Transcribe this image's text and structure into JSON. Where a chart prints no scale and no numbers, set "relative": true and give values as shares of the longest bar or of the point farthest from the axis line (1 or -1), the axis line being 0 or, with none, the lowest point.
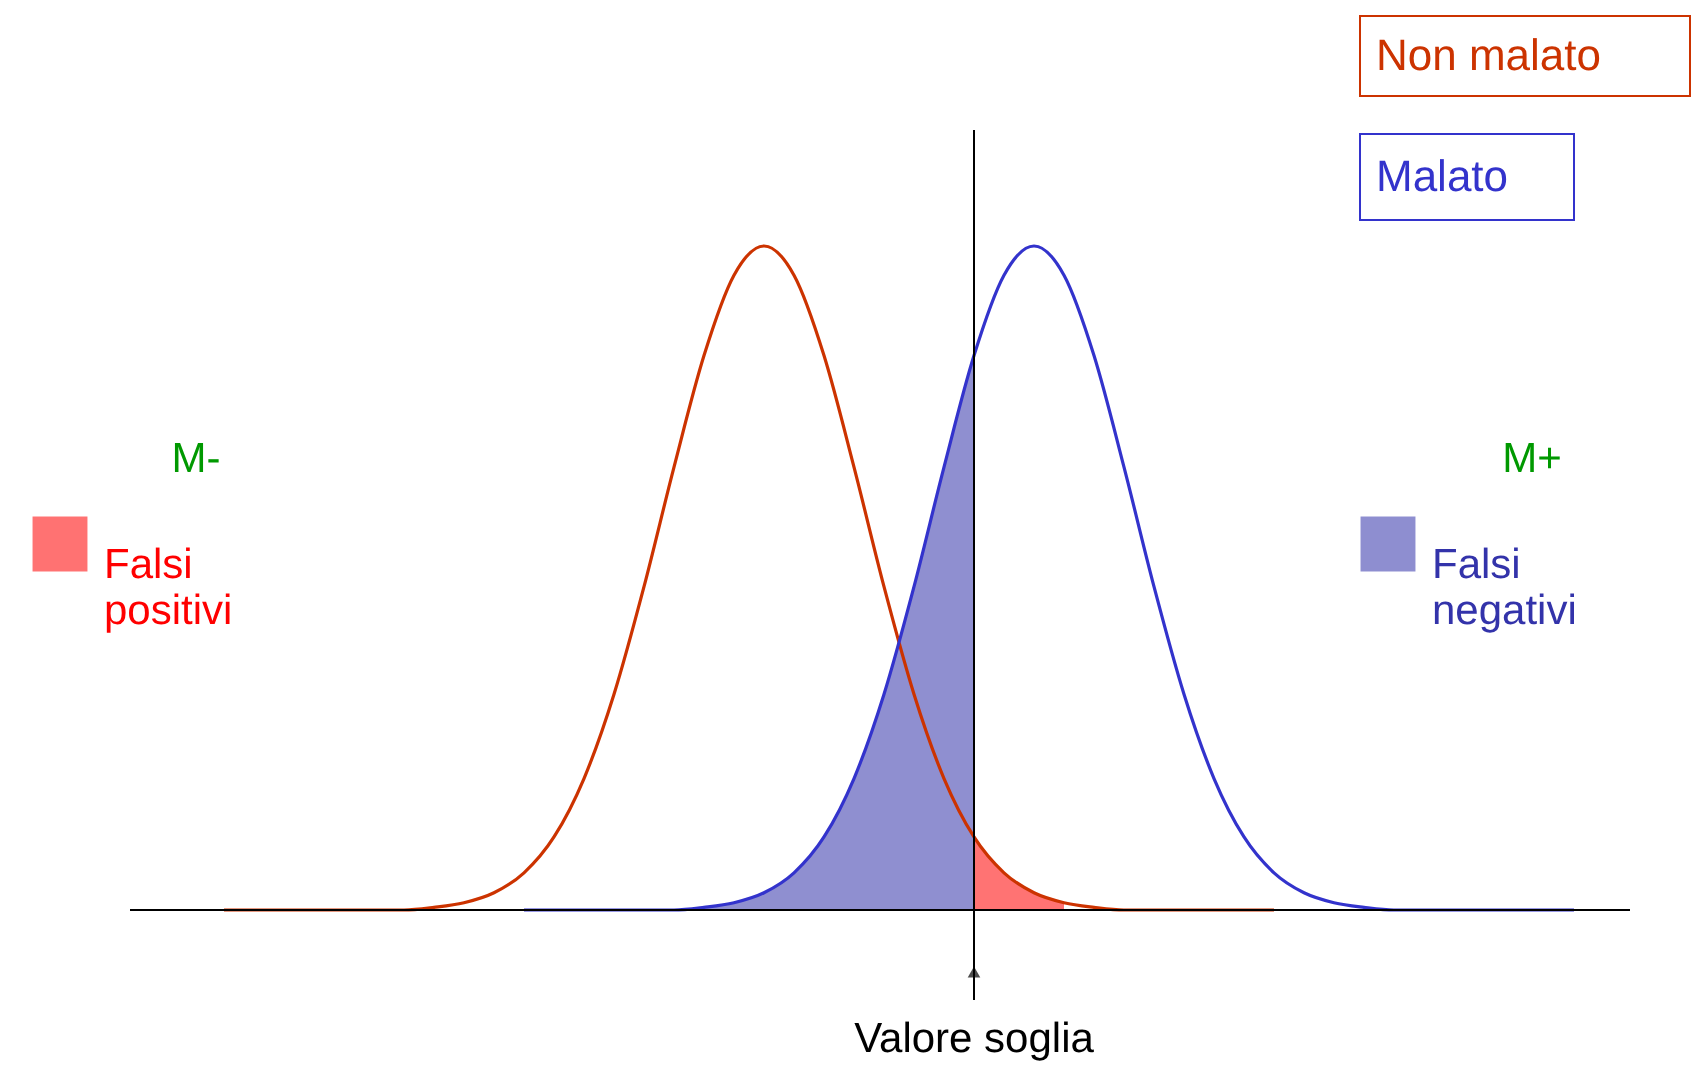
{
  "chart_data": {
    "type": "line",
    "relative": true,
    "categories": [
      null,
      null,
      null,
      null,
      null,
      null,
      null,
      null,
      null,
      null,
      null,
      null,
      null,
      null,
      null,
      null,
      null,
      null,
      null,
      null,
      null,
      null,
      null,
      null,
      null,
      null,
      null,
      null,
      null,
      null,
      null,
      null,
      null,
      null,
      null,
      null,
      null,
      null,
      null,
      null,
      null,
      null,
      null,
      null,
      null,
      null
    ],
    "series": [
      {
        "name": "Non malato",
        "color": "#cc3300",
        "values": [
          0,
          0,
          0,
          0,
          0,
          0,
          0,
          0.004,
          0.011,
          0.026,
          0.056,
          0.11,
          0.198,
          0.325,
          0.487,
          0.667,
          0.835,
          0.956,
          1,
          0.956,
          0.835,
          0.667,
          0.487,
          0.325,
          0.198,
          0.11,
          0.056,
          0.026,
          0.011,
          0.004,
          0,
          0,
          0,
          0,
          0,
          0,
          null,
          null,
          null,
          null,
          null,
          null,
          null,
          null,
          null,
          null
        ]
      },
      {
        "name": "Malato",
        "color": "#3333cc",
        "values": [
          null,
          null,
          null,
          null,
          null,
          null,
          null,
          null,
          null,
          null,
          0,
          0,
          0,
          0,
          0,
          0,
          0.004,
          0.011,
          0.026,
          0.056,
          0.11,
          0.198,
          0.325,
          0.487,
          0.667,
          0.835,
          0.956,
          1,
          0.956,
          0.835,
          0.667,
          0.487,
          0.325,
          0.198,
          0.11,
          0.056,
          0.026,
          0.011,
          0.004,
          0,
          0,
          0,
          0,
          0,
          0,
          0
        ]
      },
      {
        "name": "Falsi negativi",
        "type": "area",
        "color": "#3333aa",
        "values": [
          null,
          null,
          null,
          null,
          null,
          null,
          null,
          null,
          null,
          null,
          null,
          null,
          null,
          null,
          null,
          null,
          0.004,
          0.011,
          0.026,
          0.056,
          0.11,
          0.198,
          0.325,
          0.487,
          0.667,
          0.835,
          null,
          null,
          null,
          null,
          null,
          null,
          null,
          null,
          null,
          null,
          null,
          null,
          null,
          null,
          null,
          null,
          null,
          null,
          null,
          null
        ]
      },
      {
        "name": "Falsi positivi",
        "type": "area",
        "color": "#ff0000",
        "values": [
          null,
          null,
          null,
          null,
          null,
          null,
          null,
          null,
          null,
          null,
          null,
          null,
          null,
          null,
          null,
          null,
          null,
          null,
          null,
          null,
          null,
          null,
          null,
          null,
          null,
          0.11,
          0.056,
          0.026,
          0.011,
          null,
          null,
          null,
          null,
          null,
          null,
          null,
          null,
          null,
          null,
          null,
          null,
          null,
          null,
          null,
          null,
          null
        ]
      }
    ],
    "annotations": [
      "M-",
      "M+",
      "Valore soglia"
    ],
    "legend": "left"
  }
}
